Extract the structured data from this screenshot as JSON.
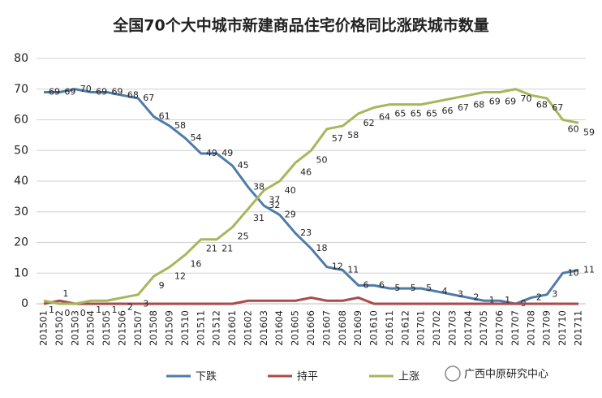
{
  "chart_data": {
    "type": "line",
    "title": "全国70个大中城市新建商品住宅价格同比涨跌城市数量",
    "categories": [
      "201501",
      "201502",
      "201503",
      "201504",
      "201505",
      "201506",
      "201507",
      "201508",
      "201509",
      "201510",
      "201511",
      "201512",
      "201601",
      "201602",
      "201603",
      "201604",
      "201605",
      "201606",
      "201607",
      "201608",
      "201609",
      "201610",
      "201611",
      "201612",
      "201701",
      "201702",
      "201703",
      "201704",
      "201705",
      "201706",
      "201707",
      "201708",
      "201709",
      "201710",
      "201711"
    ],
    "series": [
      {
        "name": "下跌",
        "color": "#4f7ba8",
        "values": [
          69,
          69,
          70,
          69,
          69,
          68,
          67,
          61,
          58,
          54,
          49,
          49,
          45,
          38,
          32,
          29,
          23,
          18,
          12,
          11,
          6,
          6,
          5,
          5,
          5,
          4,
          3,
          2,
          1,
          1,
          0,
          2,
          3,
          10,
          11
        ]
      },
      {
        "name": "持平",
        "color": "#a94b4b",
        "values": [
          0,
          1,
          0,
          0,
          0,
          0,
          0,
          0,
          0,
          0,
          0,
          0,
          0,
          1,
          1,
          1,
          1,
          2,
          1,
          1,
          2,
          0,
          0,
          0,
          0,
          0,
          0,
          0,
          0,
          0,
          0,
          0,
          0,
          0,
          0
        ],
        "value_labels": [
          null,
          "1",
          null,
          null,
          null,
          null,
          null,
          null,
          null,
          null,
          null,
          null,
          null,
          null,
          null,
          null,
          null,
          null,
          null,
          null,
          null,
          null,
          null,
          null,
          null,
          null,
          null,
          null,
          null,
          null,
          null,
          null,
          null,
          null,
          null
        ]
      },
      {
        "name": "上涨",
        "color": "#a8b65b",
        "values": [
          1,
          0,
          0,
          1,
          1,
          2,
          3,
          9,
          12,
          16,
          21,
          21,
          25,
          31,
          37,
          40,
          46,
          50,
          57,
          58,
          62,
          64,
          65,
          65,
          65,
          66,
          67,
          68,
          69,
          69,
          70,
          68,
          67,
          60,
          59
        ]
      }
    ],
    "ylim": [
      0,
      80
    ],
    "yticks": [
      0,
      10,
      20,
      30,
      40,
      50,
      60,
      70,
      80
    ],
    "grid": true,
    "legend": "bottom",
    "watermark": "广西中原研究中心"
  }
}
